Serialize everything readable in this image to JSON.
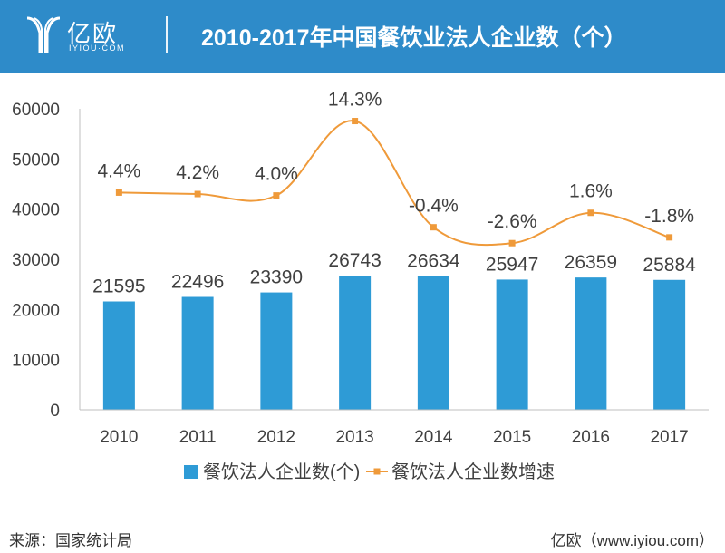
{
  "header": {
    "logo_text": "亿欧",
    "logo_sub": "IYIOU·COM",
    "title": "2010-2017年中国餐饮业法人企业数（个）"
  },
  "footer": {
    "source": "来源：国家统计局",
    "brand": "亿欧（www.iyiou.com）"
  },
  "colors": {
    "header_bg": "#2e8bc9",
    "bar": "#2e9bd6",
    "line": "#ef9a3a"
  },
  "chart_data": {
    "type": "bar",
    "categories": [
      "2010",
      "2011",
      "2012",
      "2013",
      "2014",
      "2015",
      "2016",
      "2017"
    ],
    "ylim": [
      0,
      60000
    ],
    "yticks": [
      "0",
      "10000",
      "20000",
      "30000",
      "40000",
      "50000",
      "60000"
    ],
    "series": [
      {
        "name": "餐饮法人企业数(个)",
        "type": "bar",
        "values": [
          21595,
          22496,
          23390,
          26743,
          26634,
          25947,
          26359,
          25884
        ],
        "labels": [
          "21595",
          "22496",
          "23390",
          "26743",
          "26634",
          "25947",
          "26359",
          "25884"
        ]
      },
      {
        "name": "餐饮法人企业数增速",
        "type": "line",
        "smooth": true,
        "values": [
          4.4,
          4.2,
          4.0,
          14.3,
          -0.4,
          -2.6,
          1.6,
          -1.8
        ],
        "labels": [
          "4.4%",
          "4.2%",
          "4.0%",
          "14.3%",
          "-0.4%",
          "-2.6%",
          "1.6%",
          "-1.8%"
        ]
      }
    ],
    "legend_position": "bottom",
    "grid": false
  }
}
